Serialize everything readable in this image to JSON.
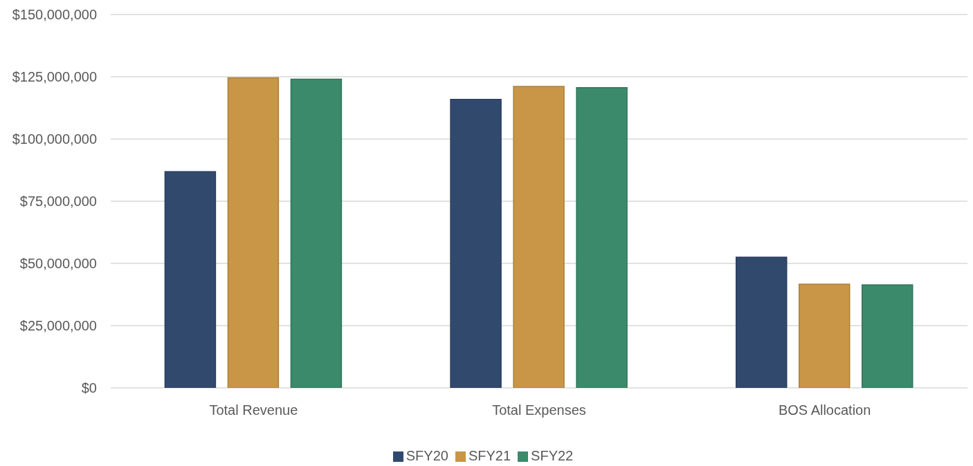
{
  "chart_data": {
    "type": "bar",
    "categories": [
      "Total Revenue",
      "Total Expenses",
      "BOS Allocation"
    ],
    "series": [
      {
        "name": "SFY20",
        "color": "#32496e",
        "values": [
          86900000,
          115900000,
          52500000
        ]
      },
      {
        "name": "SFY21",
        "color": "#c89646",
        "values": [
          124600000,
          121100000,
          41700000
        ]
      },
      {
        "name": "SFY22",
        "color": "#3b8a6c",
        "values": [
          124000000,
          120600000,
          41400000
        ]
      }
    ],
    "ylim": [
      0,
      150000000
    ],
    "yticks": [
      {
        "value": 0,
        "label": "$0"
      },
      {
        "value": 25000000,
        "label": "$25,000,000"
      },
      {
        "value": 50000000,
        "label": "$50,000,000"
      },
      {
        "value": 75000000,
        "label": "$75,000,000"
      },
      {
        "value": 100000000,
        "label": "$100,000,000"
      },
      {
        "value": 125000000,
        "label": "$125,000,000"
      },
      {
        "value": 150000000,
        "label": "$150,000,000"
      }
    ],
    "grid": "y",
    "legend": "bottom"
  }
}
